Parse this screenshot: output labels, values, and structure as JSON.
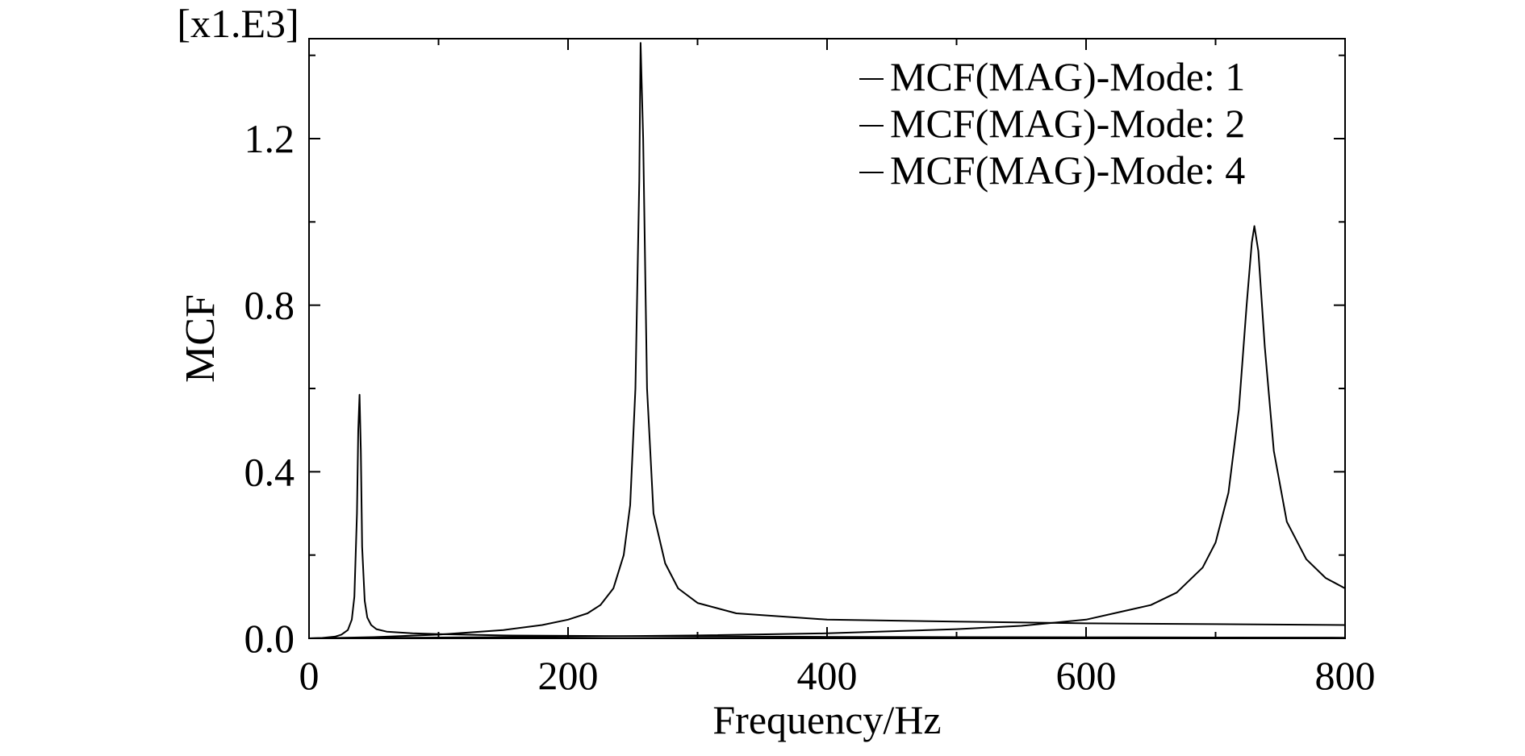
{
  "chart_data": {
    "type": "line",
    "title": "",
    "xlabel": "Frequency/Hz",
    "ylabel": "MCF",
    "y_multiplier_label": "[x1.E3]",
    "xlim": [
      0,
      800
    ],
    "ylim": [
      0,
      1.44
    ],
    "x_ticks": [
      0,
      200,
      400,
      600,
      800
    ],
    "x_tick_labels": [
      "0",
      "200",
      "400",
      "600",
      "800"
    ],
    "y_ticks": [
      0,
      0.4,
      0.8,
      1.2
    ],
    "y_tick_labels": [
      "0.0",
      "0.4",
      "0.8",
      "1.2"
    ],
    "grid": false,
    "legend_position": "top-right",
    "series": [
      {
        "name": "MCF(MAG)-Mode: 1",
        "color": "#000000",
        "x": [
          0,
          10,
          20,
          25,
          30,
          33,
          35,
          37,
          38,
          39,
          40,
          41,
          43,
          45,
          48,
          52,
          60,
          80,
          100,
          150,
          200,
          300,
          400,
          500,
          600,
          700,
          800
        ],
        "y": [
          0,
          0.001,
          0.004,
          0.009,
          0.02,
          0.045,
          0.1,
          0.3,
          0.5,
          0.585,
          0.45,
          0.22,
          0.09,
          0.05,
          0.032,
          0.022,
          0.016,
          0.012,
          0.01,
          0.007,
          0.006,
          0.0045,
          0.0035,
          0.003,
          0.0025,
          0.002,
          0.0015
        ]
      },
      {
        "name": "MCF(MAG)-Mode: 2",
        "color": "#000000",
        "x": [
          0,
          20,
          50,
          100,
          150,
          180,
          200,
          215,
          225,
          235,
          243,
          248,
          252,
          255,
          256,
          258,
          261,
          266,
          275,
          285,
          300,
          330,
          400,
          500,
          600,
          700,
          800
        ],
        "y": [
          0,
          0.001,
          0.003,
          0.009,
          0.02,
          0.032,
          0.045,
          0.06,
          0.08,
          0.12,
          0.2,
          0.32,
          0.6,
          1.1,
          1.43,
          1.2,
          0.6,
          0.3,
          0.18,
          0.12,
          0.085,
          0.06,
          0.045,
          0.04,
          0.036,
          0.034,
          0.032
        ]
      },
      {
        "name": "MCF(MAG)-Mode: 4",
        "color": "#000000",
        "x": [
          0,
          50,
          100,
          200,
          300,
          400,
          500,
          550,
          600,
          650,
          670,
          690,
          700,
          710,
          718,
          724,
          728,
          730,
          733,
          738,
          745,
          755,
          770,
          785,
          800
        ],
        "y": [
          0,
          0.001,
          0.002,
          0.004,
          0.007,
          0.012,
          0.022,
          0.03,
          0.045,
          0.08,
          0.11,
          0.17,
          0.23,
          0.35,
          0.55,
          0.8,
          0.95,
          0.99,
          0.93,
          0.7,
          0.45,
          0.28,
          0.19,
          0.145,
          0.12
        ]
      }
    ]
  }
}
